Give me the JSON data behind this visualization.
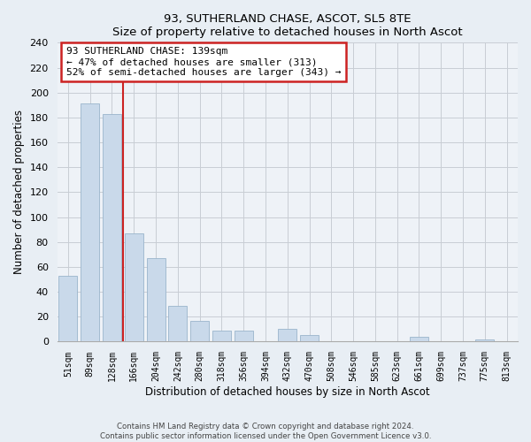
{
  "title": "93, SUTHERLAND CHASE, ASCOT, SL5 8TE",
  "subtitle": "Size of property relative to detached houses in North Ascot",
  "xlabel": "Distribution of detached houses by size in North Ascot",
  "ylabel": "Number of detached properties",
  "categories": [
    "51sqm",
    "89sqm",
    "128sqm",
    "166sqm",
    "204sqm",
    "242sqm",
    "280sqm",
    "318sqm",
    "356sqm",
    "394sqm",
    "432sqm",
    "470sqm",
    "508sqm",
    "546sqm",
    "585sqm",
    "623sqm",
    "661sqm",
    "699sqm",
    "737sqm",
    "775sqm",
    "813sqm"
  ],
  "values": [
    53,
    191,
    183,
    87,
    67,
    29,
    17,
    9,
    9,
    0,
    10,
    5,
    0,
    0,
    0,
    0,
    4,
    0,
    0,
    2,
    0
  ],
  "bar_color": "#c9d9ea",
  "bar_edge_color": "#9ab5cc",
  "redline_x": 2.5,
  "annotation_title": "93 SUTHERLAND CHASE: 139sqm",
  "annotation_line1": "← 47% of detached houses are smaller (313)",
  "annotation_line2": "52% of semi-detached houses are larger (343) →",
  "annotation_box_color": "#ffffff",
  "annotation_box_edge": "#cc2222",
  "redline_color": "#cc2222",
  "ylim": [
    0,
    240
  ],
  "yticks": [
    0,
    20,
    40,
    60,
    80,
    100,
    120,
    140,
    160,
    180,
    200,
    220,
    240
  ],
  "footer1": "Contains HM Land Registry data © Crown copyright and database right 2024.",
  "footer2": "Contains public sector information licensed under the Open Government Licence v3.0.",
  "fig_bg_color": "#e8eef4",
  "plot_bg_color": "#eef2f7"
}
